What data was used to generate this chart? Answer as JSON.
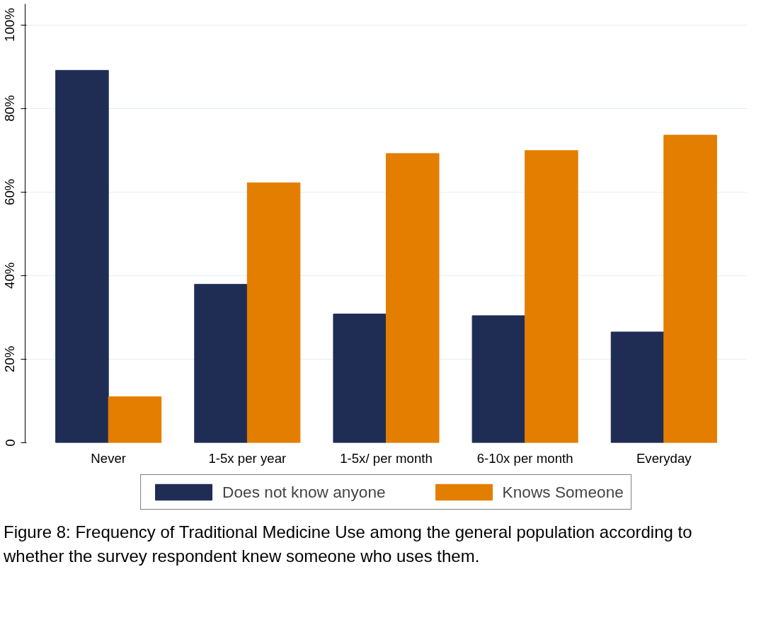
{
  "chart_data": {
    "type": "bar",
    "categories": [
      "Never",
      "1-5x per year",
      "1-5x/ per month",
      "6-10x per month",
      "Everyday"
    ],
    "series": [
      {
        "name": "Does not know anyone",
        "color": "#1f2d54",
        "values": [
          89.1,
          37.9,
          30.8,
          30.4,
          26.5
        ]
      },
      {
        "name": "Knows Someone",
        "color": "#e37e00",
        "values": [
          11.0,
          62.2,
          69.2,
          69.9,
          73.6
        ]
      }
    ],
    "ylim": [
      0,
      105
    ],
    "yticks": [
      0,
      {
        "value": 20,
        "label": "20%"
      },
      {
        "value": 40,
        "label": "40%"
      },
      {
        "value": 60,
        "label": "60%"
      },
      {
        "value": 80,
        "label": "80%"
      },
      {
        "value": 100,
        "label": "100%"
      }
    ],
    "grid": "y",
    "legend": "bottom",
    "annotations": [
      "Figure 8: Frequency of Traditional Medicine Use among the general population according to whether the survey respondent knew someone who uses them."
    ]
  }
}
